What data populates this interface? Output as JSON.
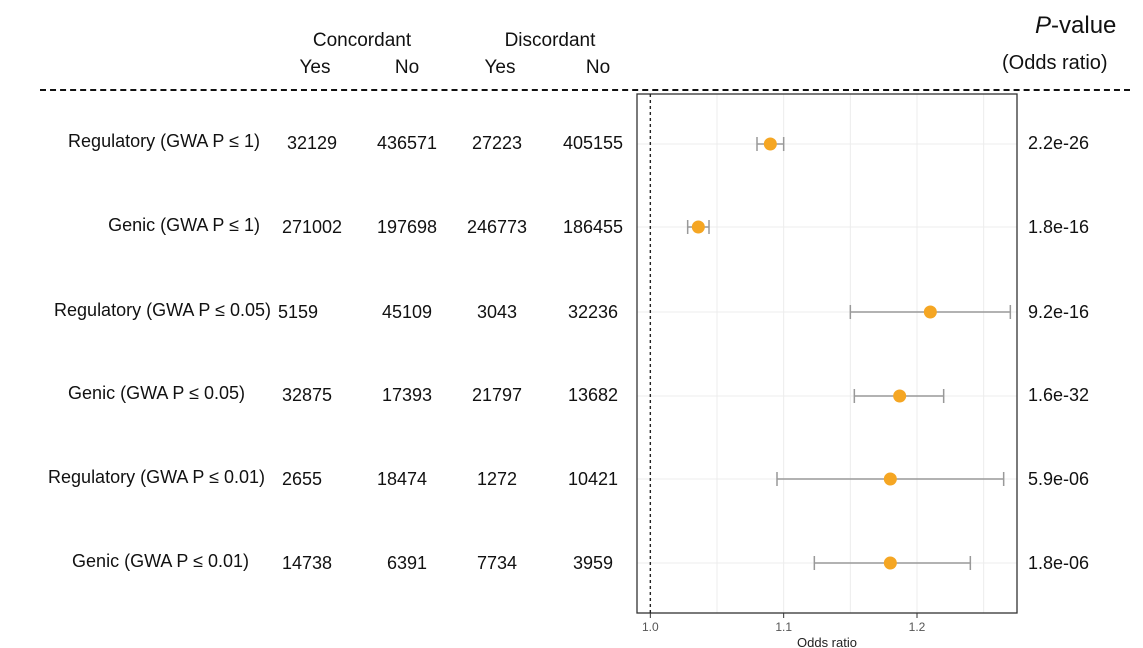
{
  "header": {
    "concordant": "Concordant",
    "discordant": "Discordant",
    "yes": "Yes",
    "no": "No",
    "pvalue_prefix": "P",
    "pvalue_suffix": "-value",
    "odds_ratio_paren": "(Odds ratio)"
  },
  "rows": [
    {
      "label": "Regulatory (GWA P ≤ 1)",
      "conc_yes": "32129",
      "conc_no": "436571",
      "disc_yes": "27223",
      "disc_no": "405155",
      "pvalue": "2.2e-26"
    },
    {
      "label": "Genic (GWA P ≤ 1)",
      "conc_yes": "271002",
      "conc_no": "197698",
      "disc_yes": "246773",
      "disc_no": "186455",
      "pvalue": "1.8e-16"
    },
    {
      "label": "Regulatory (GWA P ≤ 0.05)",
      "conc_yes": "5159",
      "conc_no": "45109",
      "disc_yes": "3043",
      "disc_no": "32236",
      "pvalue": "9.2e-16"
    },
    {
      "label": "Genic (GWA P ≤ 0.05)",
      "conc_yes": "32875",
      "conc_no": "17393",
      "disc_yes": "21797",
      "disc_no": "13682",
      "pvalue": "1.6e-32"
    },
    {
      "label": "Regulatory (GWA P ≤ 0.01)",
      "conc_yes": "2655",
      "conc_no": "18474",
      "disc_yes": "1272",
      "disc_no": "10421",
      "pvalue": "5.9e-06"
    },
    {
      "label": "Genic (GWA P ≤ 0.01)",
      "conc_yes": "14738",
      "conc_no": "6391",
      "disc_yes": "7734",
      "disc_no": "3959",
      "pvalue": "1.8e-06"
    }
  ],
  "chart_data": {
    "type": "scatter",
    "subtype": "forest-plot",
    "xlabel": "Odds ratio",
    "xlim": [
      0.99,
      1.275
    ],
    "xticks": [
      1.0,
      1.1,
      1.2
    ],
    "xtick_labels": [
      "1.0",
      "1.1",
      "1.2"
    ],
    "reference_line": 1.0,
    "grid": true,
    "categories": [
      "Regulatory (GWA P ≤ 1)",
      "Genic (GWA P ≤ 1)",
      "Regulatory (GWA P ≤ 0.05)",
      "Genic (GWA P ≤ 0.05)",
      "Regulatory (GWA P ≤ 0.01)",
      "Genic (GWA P ≤ 0.01)"
    ],
    "estimates": [
      1.09,
      1.036,
      1.21,
      1.187,
      1.18,
      1.18
    ],
    "ci_low": [
      1.08,
      1.028,
      1.15,
      1.153,
      1.095,
      1.123
    ],
    "ci_high": [
      1.1,
      1.044,
      1.27,
      1.22,
      1.265,
      1.24
    ],
    "point_color": "#f5a623",
    "errorbar_color": "#999999"
  }
}
